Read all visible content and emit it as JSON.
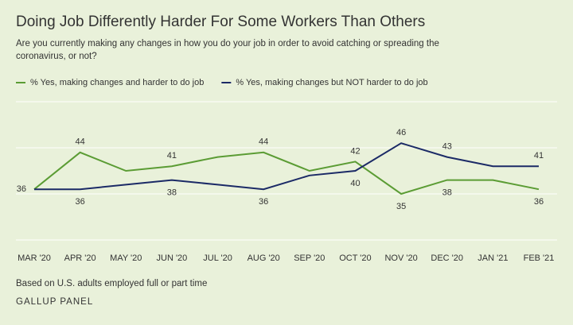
{
  "chart_data": {
    "type": "line",
    "title": "Doing Job Differently Harder For Some Workers Than Others",
    "subtitle": "Are you currently making any changes in how you do your job in order to avoid catching or spreading the coronavirus, or not?",
    "categories": [
      "MAR '20",
      "APR '20",
      "MAY '20",
      "JUN '20",
      "JUL '20",
      "AUG '20",
      "SEP '20",
      "OCT '20",
      "NOV '20",
      "DEC '20",
      "JAN '21",
      "FEB '21"
    ],
    "series": [
      {
        "name": "% Yes, making changes and harder to do job",
        "color": "#5b9c34",
        "values": [
          36,
          44,
          40,
          41,
          43,
          44,
          40,
          42,
          35,
          38,
          38,
          36
        ],
        "value_labels": [
          "36",
          "44",
          null,
          "41",
          null,
          "44",
          null,
          "42",
          "35",
          "38",
          null,
          "36"
        ]
      },
      {
        "name": "% Yes, making changes but NOT harder to do job",
        "color": "#1b2a66",
        "values": [
          36,
          36,
          37,
          38,
          37,
          36,
          39,
          40,
          46,
          43,
          41,
          41
        ],
        "value_labels": [
          null,
          "36",
          null,
          "38",
          null,
          "36",
          null,
          "40",
          "46",
          "43",
          null,
          "41"
        ]
      }
    ],
    "ylim": [
      25,
      55
    ],
    "yticks": [
      25,
      35,
      45,
      55
    ],
    "grid": true,
    "note": "Based on U.S. adults employed full or part time",
    "source": "GALLUP PANEL"
  }
}
